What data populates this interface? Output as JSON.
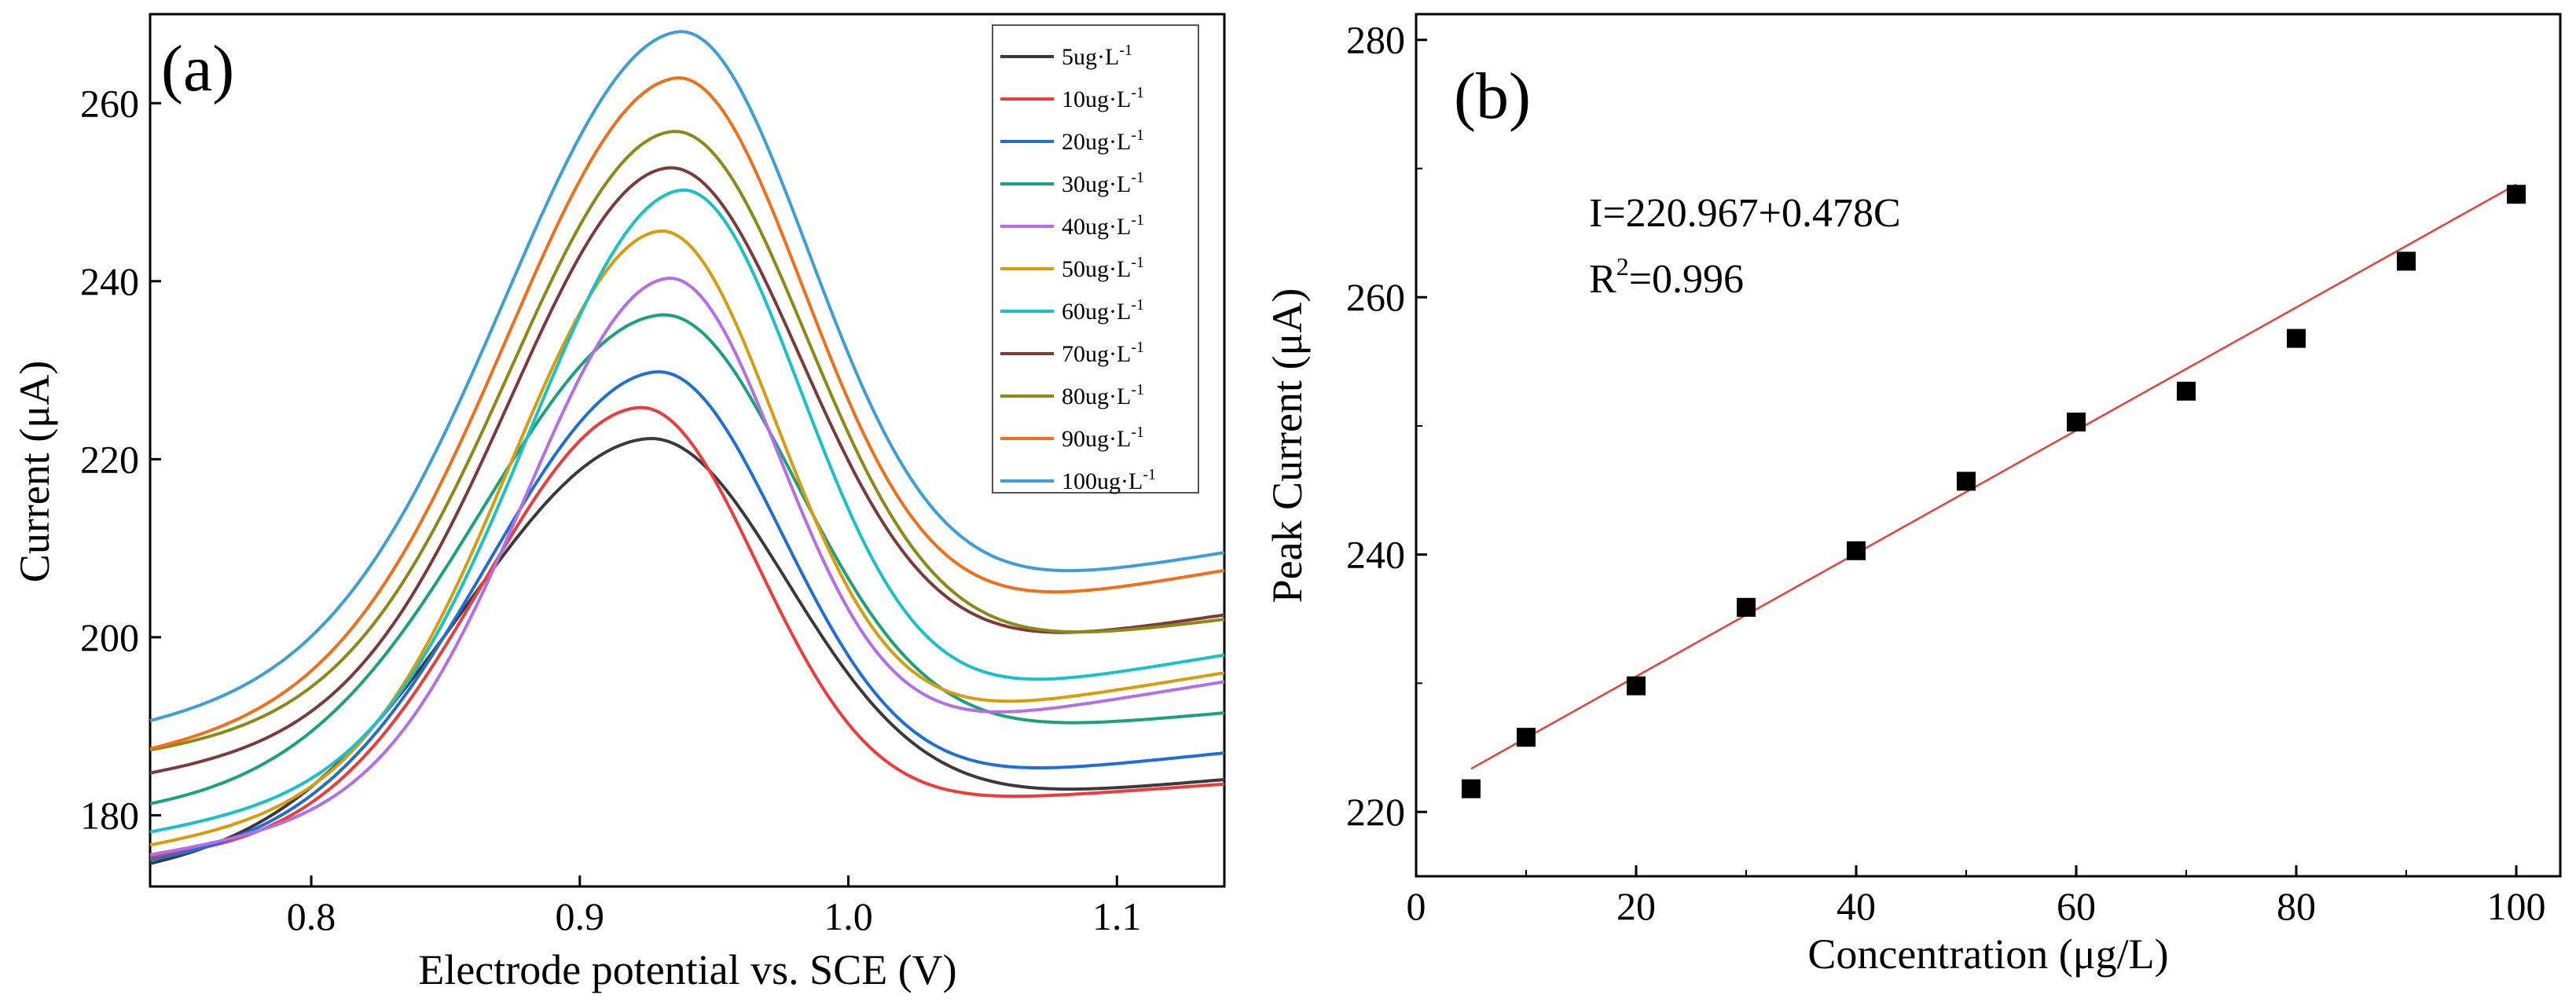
{
  "chart_data": [
    {
      "type": "line",
      "panel_label": "(a)",
      "xlabel": "Electrode potential vs. SCE (V)",
      "ylabel": "Current (μA)",
      "xlim": [
        0.74,
        1.14
      ],
      "ylim": [
        172,
        270
      ],
      "xticks": [
        0.8,
        0.9,
        1.0,
        1.1
      ],
      "xtick_labels": [
        "0.8",
        "0.9",
        "1.0",
        "1.1"
      ],
      "yticks": [
        180,
        200,
        220,
        240,
        260
      ],
      "ytick_labels": [
        "180",
        "200",
        "220",
        "240",
        "260"
      ],
      "legend_position": "top-right",
      "legend_unit": "ug·L",
      "legend_exponent": "-1",
      "series": [
        {
          "name": "5ug·L-1",
          "label": "5ug",
          "color": "#3a3a3a",
          "baseline_start": 173.5,
          "baseline_end": 184.0,
          "peak_x": 0.925,
          "peak_y": 222.3,
          "width_left": 0.068,
          "width_right": 0.052
        },
        {
          "name": "10ug·L-1",
          "label": "10ug",
          "color": "#ef3b3b",
          "baseline_start": 175.0,
          "baseline_end": 183.5,
          "peak_x": 0.922,
          "peak_y": 225.8,
          "width_left": 0.058,
          "width_right": 0.044
        },
        {
          "name": "20ug·L-1",
          "label": "20ug",
          "color": "#1f6fd6",
          "baseline_start": 174.5,
          "baseline_end": 187.0,
          "peak_x": 0.928,
          "peak_y": 229.8,
          "width_left": 0.062,
          "width_right": 0.047
        },
        {
          "name": "30ug·L-1",
          "label": "30ug",
          "color": "#1aa37a",
          "baseline_start": 180.5,
          "baseline_end": 191.5,
          "peak_x": 0.93,
          "peak_y": 236.2,
          "width_left": 0.066,
          "width_right": 0.05
        },
        {
          "name": "40ug·L-1",
          "label": "40ug",
          "color": "#b46ee8",
          "baseline_start": 175.5,
          "baseline_end": 195.0,
          "peak_x": 0.932,
          "peak_y": 240.3,
          "width_left": 0.052,
          "width_right": 0.042
        },
        {
          "name": "50ug·L-1",
          "label": "50ug",
          "color": "#d99c0c",
          "baseline_start": 176.5,
          "baseline_end": 196.0,
          "peak_x": 0.929,
          "peak_y": 245.6,
          "width_left": 0.055,
          "width_right": 0.044
        },
        {
          "name": "60ug·L-1",
          "label": "60ug",
          "color": "#18c2c9",
          "baseline_start": 178.0,
          "baseline_end": 198.0,
          "peak_x": 0.937,
          "peak_y": 250.2,
          "width_left": 0.056,
          "width_right": 0.045
        },
        {
          "name": "70ug·L-1",
          "label": "70ug",
          "color": "#7d3a3a",
          "baseline_start": 184.5,
          "baseline_end": 202.5,
          "peak_x": 0.932,
          "peak_y": 252.7,
          "width_left": 0.058,
          "width_right": 0.05
        },
        {
          "name": "80ug·L-1",
          "label": "80ug",
          "color": "#8a8a14",
          "baseline_start": 187.0,
          "baseline_end": 202.0,
          "peak_x": 0.934,
          "peak_y": 256.8,
          "width_left": 0.06,
          "width_right": 0.05
        },
        {
          "name": "90ug·L-1",
          "label": "90ug",
          "color": "#f26f1a",
          "baseline_start": 187.0,
          "baseline_end": 207.5,
          "peak_x": 0.935,
          "peak_y": 262.8,
          "width_left": 0.062,
          "width_right": 0.048
        },
        {
          "name": "100ug·L-1",
          "label": "100ug",
          "color": "#3d9fd8",
          "baseline_start": 190.0,
          "baseline_end": 209.5,
          "peak_x": 0.936,
          "peak_y": 268.0,
          "width_left": 0.064,
          "width_right": 0.049
        }
      ]
    },
    {
      "type": "scatter",
      "panel_label": "(b)",
      "xlabel": "Concentration (μg/L)",
      "ylabel": "Peak Current (μA)",
      "xlim": [
        0,
        104
      ],
      "ylim": [
        215,
        282
      ],
      "xticks": [
        0,
        20,
        40,
        60,
        80,
        100
      ],
      "xtick_labels": [
        "0",
        "20",
        "40",
        "60",
        "80",
        "100"
      ],
      "yticks": [
        220,
        240,
        260,
        280
      ],
      "ytick_labels": [
        "220",
        "240",
        "260",
        "280"
      ],
      "points": {
        "x": [
          5,
          10,
          20,
          30,
          40,
          50,
          60,
          70,
          80,
          90,
          100
        ],
        "y": [
          221.8,
          225.8,
          229.8,
          235.9,
          240.3,
          245.7,
          250.3,
          252.7,
          256.8,
          262.8,
          268.0
        ]
      },
      "point_color": "#000000",
      "fit": {
        "intercept": 220.967,
        "slope": 0.478,
        "x_range": [
          5,
          100
        ],
        "color": "#e8413c",
        "equation_text": "I=220.967+0.478C",
        "r2_prefix": "R",
        "r2_exponent": "2",
        "r2_value_text": "=0.996"
      }
    }
  ]
}
